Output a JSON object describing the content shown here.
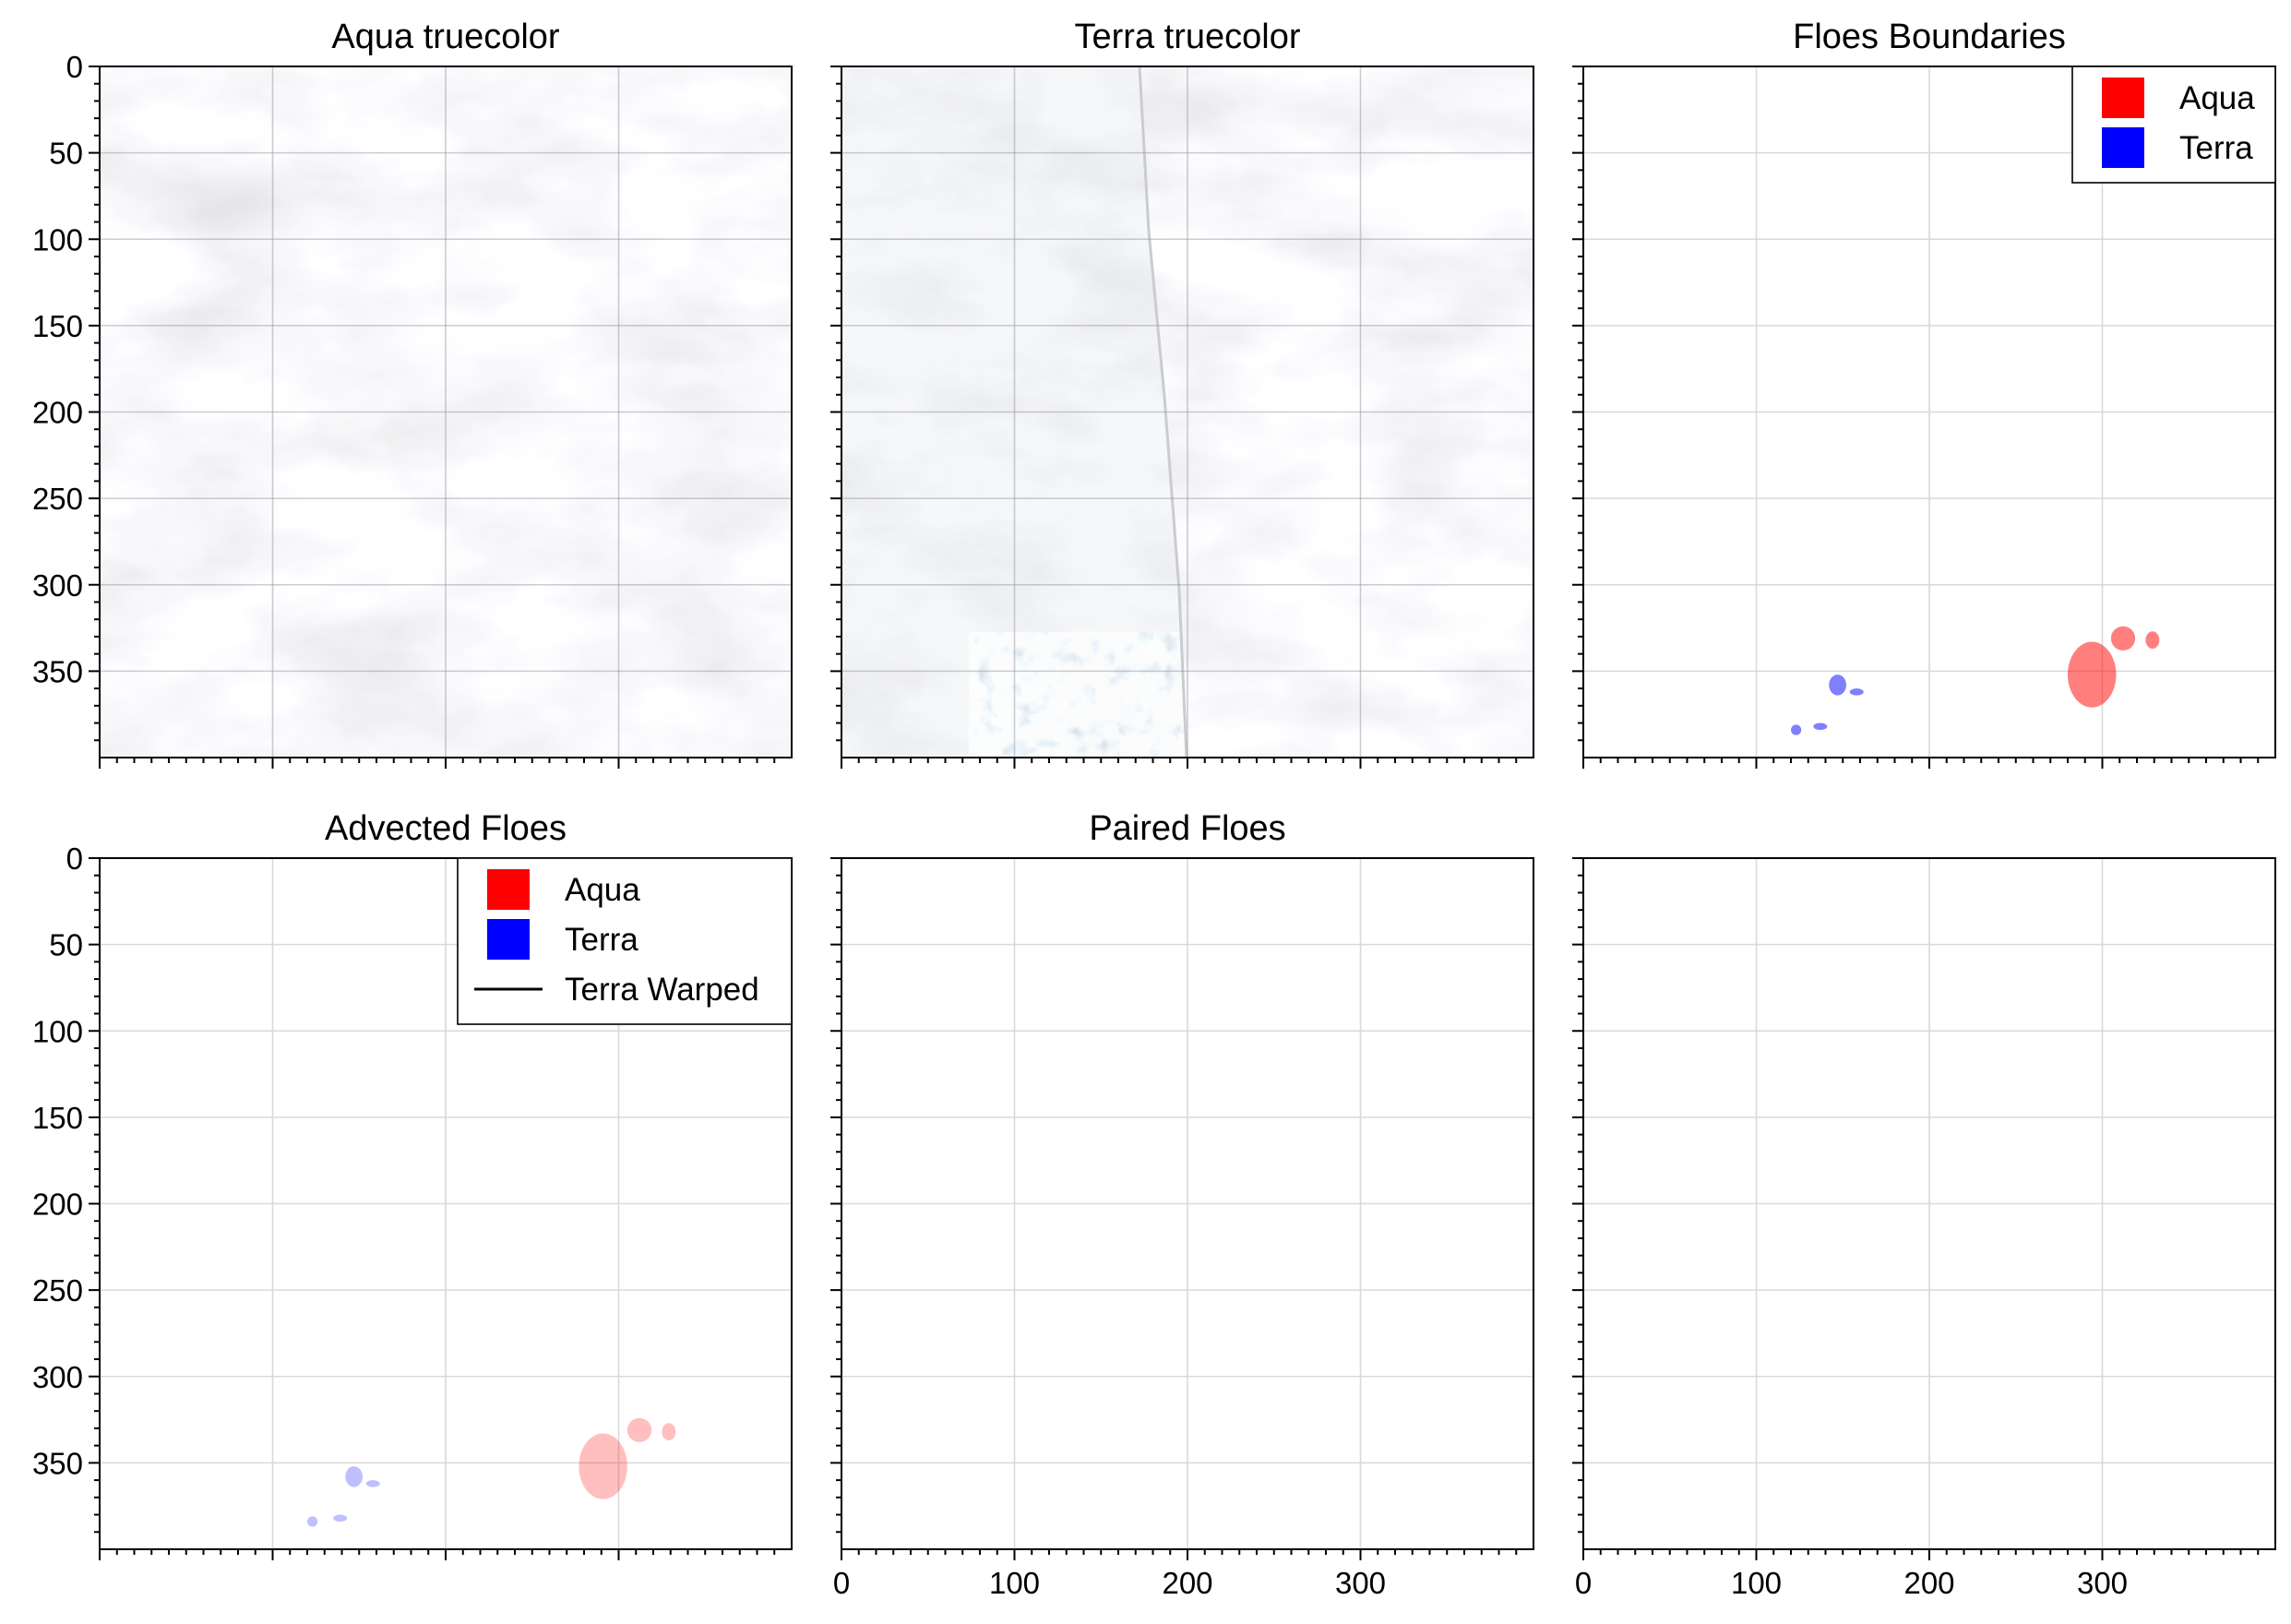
{
  "figure": {
    "panel_titles": [
      "Aqua truecolor",
      "Terra truecolor",
      "Floes Boundaries",
      "Advected Floes",
      "Paired Floes",
      ""
    ],
    "colors": {
      "aqua": "#ff0000",
      "terra": "#0000ff",
      "terra_warped": "#000000",
      "grid": "#d9d9d9",
      "axes": "#000000"
    }
  },
  "chart_data": [
    {
      "type": "image",
      "title": "Aqua truecolor",
      "xlim": [
        0,
        400
      ],
      "ylim": [
        400,
        0
      ],
      "xticks": [],
      "yticks": [
        "0",
        "50",
        "100",
        "150",
        "200",
        "250",
        "300",
        "350"
      ],
      "content": "grayish-white cloud cover satellite image",
      "grid": true
    },
    {
      "type": "image",
      "title": "Terra truecolor",
      "xlim": [
        0,
        400
      ],
      "ylim": [
        400,
        0
      ],
      "xticks": [],
      "yticks": [],
      "content": "satellite image with swath boundary near x=175, ice floes visible near bottom center",
      "grid": true
    },
    {
      "type": "scatter",
      "title": "Floes Boundaries",
      "xlim": [
        0,
        400
      ],
      "ylim": [
        400,
        0
      ],
      "xticks": [],
      "yticks": [],
      "grid": true,
      "legend": {
        "position": "top-right",
        "entries": [
          {
            "label": "Aqua",
            "color": "#ff0000",
            "kind": "patch"
          },
          {
            "label": "Terra",
            "color": "#0000ff",
            "kind": "patch"
          }
        ]
      },
      "series": [
        {
          "name": "Aqua",
          "color": "#ff0000",
          "alpha": 0.5,
          "floes": [
            {
              "cx": 294,
              "cy": 352,
              "rx": 14,
              "ry": 19
            },
            {
              "cx": 312,
              "cy": 331,
              "rx": 7,
              "ry": 7
            },
            {
              "cx": 329,
              "cy": 332,
              "rx": 4,
              "ry": 5
            }
          ]
        },
        {
          "name": "Terra",
          "color": "#0000ff",
          "alpha": 0.5,
          "floes": [
            {
              "cx": 147,
              "cy": 358,
              "rx": 5,
              "ry": 6
            },
            {
              "cx": 158,
              "cy": 362,
              "rx": 4,
              "ry": 2
            },
            {
              "cx": 123,
              "cy": 384,
              "rx": 3,
              "ry": 3
            },
            {
              "cx": 137,
              "cy": 382,
              "rx": 4,
              "ry": 2
            }
          ]
        }
      ]
    },
    {
      "type": "scatter",
      "title": "Advected Floes",
      "xlim": [
        0,
        400
      ],
      "ylim": [
        400,
        0
      ],
      "xticks": [],
      "yticks": [
        "0",
        "50",
        "100",
        "150",
        "200",
        "250",
        "300",
        "350"
      ],
      "grid": true,
      "legend": {
        "position": "top-right",
        "entries": [
          {
            "label": "Aqua",
            "color": "#ff0000",
            "kind": "patch"
          },
          {
            "label": "Terra",
            "color": "#0000ff",
            "kind": "patch"
          },
          {
            "label": "Terra Warped",
            "color": "#000000",
            "kind": "line"
          }
        ]
      },
      "series": [
        {
          "name": "Aqua",
          "color": "#ff0000",
          "alpha": 0.25,
          "floes": [
            {
              "cx": 291,
              "cy": 352,
              "rx": 14,
              "ry": 19
            },
            {
              "cx": 312,
              "cy": 331,
              "rx": 7,
              "ry": 7
            },
            {
              "cx": 329,
              "cy": 332,
              "rx": 4,
              "ry": 5
            }
          ]
        },
        {
          "name": "Terra",
          "color": "#0000ff",
          "alpha": 0.25,
          "floes": [
            {
              "cx": 147,
              "cy": 358,
              "rx": 5,
              "ry": 6
            },
            {
              "cx": 158,
              "cy": 362,
              "rx": 4,
              "ry": 2
            },
            {
              "cx": 123,
              "cy": 384,
              "rx": 3,
              "ry": 3
            },
            {
              "cx": 139,
              "cy": 382,
              "rx": 4,
              "ry": 2
            }
          ]
        }
      ]
    },
    {
      "type": "scatter",
      "title": "Paired Floes",
      "xlim": [
        0,
        400
      ],
      "ylim": [
        400,
        0
      ],
      "xticks": [
        "0",
        "100",
        "200",
        "300"
      ],
      "yticks": [],
      "grid": true,
      "series": []
    },
    {
      "type": "scatter",
      "title": "",
      "xlim": [
        0,
        400
      ],
      "ylim": [
        400,
        0
      ],
      "xticks": [
        "0",
        "100",
        "200",
        "300"
      ],
      "yticks": [],
      "grid": true,
      "series": []
    }
  ]
}
